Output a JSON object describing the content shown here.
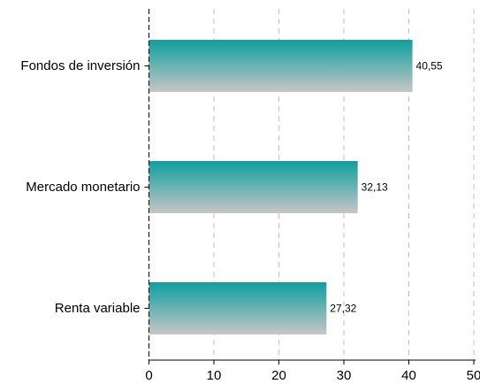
{
  "chart_data": {
    "type": "bar",
    "orientation": "horizontal",
    "categories": [
      "Fondos de inversión",
      "Mercado monetario",
      "Renta variable"
    ],
    "values": [
      40.55,
      32.13,
      27.32
    ],
    "value_labels": [
      "40,55",
      "32,13",
      "27,32"
    ],
    "xlim": [
      0,
      50
    ],
    "x_ticks": [
      0,
      10,
      20,
      30,
      40,
      50
    ],
    "x_tick_labels": [
      "0",
      "10",
      "20",
      "30",
      "40",
      "50"
    ],
    "grid": "vertical-dashed",
    "legend": "none",
    "colors": {
      "bar_top": "#0e9fa0",
      "bar_bottom": "#c8c5c5",
      "grid": "#c2c2c2",
      "axis": "#000000"
    }
  }
}
